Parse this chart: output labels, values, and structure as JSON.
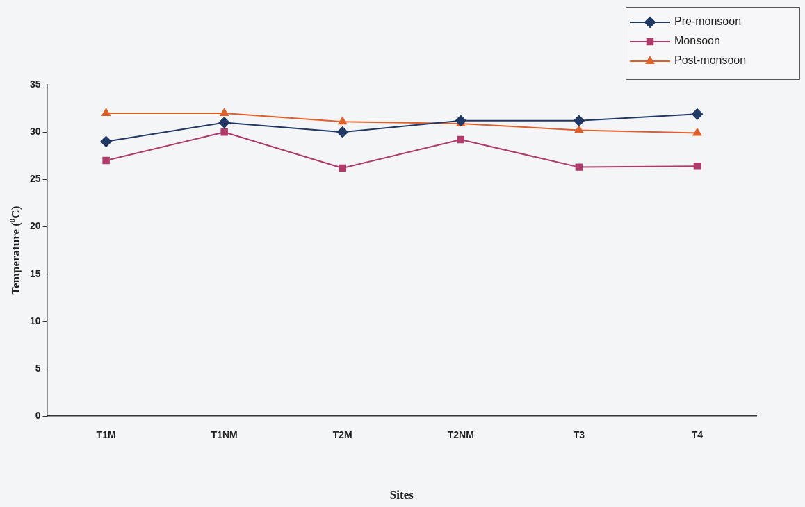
{
  "chart_data": {
    "type": "line",
    "xlabel": "Sites",
    "ylabel": "Temperature ($^{0}$C)",
    "categories": [
      "T1M",
      "T1NM",
      "T2M",
      "T2NM",
      "T3",
      "T4"
    ],
    "ylim": [
      0,
      35
    ],
    "yticks": [
      0,
      5,
      10,
      15,
      20,
      25,
      30,
      35
    ],
    "grid": false,
    "legend": "top right",
    "series": [
      {
        "name": "Pre-monsoon",
        "color": "#1f3864",
        "marker": "diamond",
        "values": [
          29,
          31,
          30,
          31.2,
          31.2,
          31.9
        ]
      },
      {
        "name": "Monsoon",
        "color": "#b03a6a",
        "marker": "square",
        "values": [
          27,
          30,
          26.2,
          29.2,
          26.3,
          26.4
        ]
      },
      {
        "name": "Post-monsoon",
        "color": "#e0602a",
        "marker": "triangle",
        "values": [
          32,
          32,
          31.1,
          30.9,
          30.2,
          29.9
        ]
      }
    ]
  }
}
